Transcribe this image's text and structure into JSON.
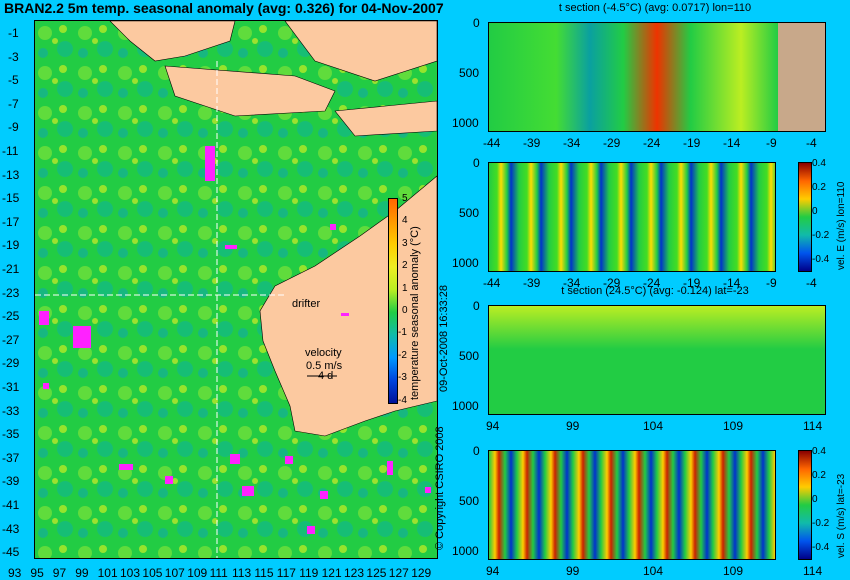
{
  "main_title": "BRAN2.2 5m temp. seasonal anomaly (avg: 0.326) for 04-Nov-2007",
  "map": {
    "lat_ticks": [
      "-1",
      "-3",
      "-5",
      "-7",
      "-9",
      "-11",
      "-13",
      "-15",
      "-17",
      "-19",
      "-21",
      "-23",
      "-25",
      "-27",
      "-29",
      "-31",
      "-33",
      "-35",
      "-37",
      "-39",
      "-41",
      "-43",
      "-45"
    ],
    "lon_ticks": [
      "93",
      "95",
      "97",
      "99",
      "101",
      "103",
      "105",
      "107",
      "109",
      "111",
      "113",
      "115",
      "117",
      "119",
      "121",
      "123",
      "125",
      "127",
      "129"
    ],
    "drifter_label": "drifter",
    "velocity_label": "velocity",
    "velocity_value": "0.5 m/s",
    "velocity_sub": "4 d",
    "colorbar_label": "temperature seasonal anomaly (°C)",
    "colorbar_ticks": [
      "5",
      "4",
      "3",
      "2",
      "1",
      "0",
      "-1",
      "-2",
      "-3",
      "-4"
    ],
    "copyright": "© Copyright CSIRO 2008",
    "timestamp": "09-Oct-2008 16:33:28"
  },
  "panels": [
    {
      "title": "t section (-4.5°C) (avg: 0.0717) lon=110",
      "x_ticks": [
        "-44",
        "-39",
        "-34",
        "-29",
        "-24",
        "-19",
        "-14",
        "-9",
        "-4"
      ],
      "y_ticks": [
        "0",
        "500",
        "1000"
      ]
    },
    {
      "title": "",
      "x_ticks": [
        "-44",
        "-39",
        "-34",
        "-29",
        "-24",
        "-19",
        "-14",
        "-9",
        "-4"
      ],
      "y_ticks": [
        "0",
        "500",
        "1000"
      ],
      "colorbar_ticks": [
        "0.4",
        "0.2",
        "0",
        "-0.2",
        "-0.4"
      ],
      "colorbar_label": "vel. E (m/s) lon=110"
    },
    {
      "title": "t section (24.5°C) (avg: -0.124) lat=-23",
      "x_ticks": [
        "94",
        "99",
        "104",
        "109",
        "114"
      ],
      "y_ticks": [
        "0",
        "500",
        "1000"
      ]
    },
    {
      "title": "",
      "x_ticks": [
        "94",
        "99",
        "104",
        "109",
        "114"
      ],
      "y_ticks": [
        "0",
        "500",
        "1000"
      ],
      "colorbar_ticks": [
        "0.4",
        "0.2",
        "0",
        "-0.2",
        "-0.4"
      ],
      "colorbar_label": "vel. S (m/s) lat=-23"
    }
  ],
  "colors": {
    "background": "#00ccff",
    "land": "#fcc9a0",
    "ocean_green": "#22cc44",
    "section_land": "#c8a88a",
    "drifter": "#ff22ff"
  }
}
